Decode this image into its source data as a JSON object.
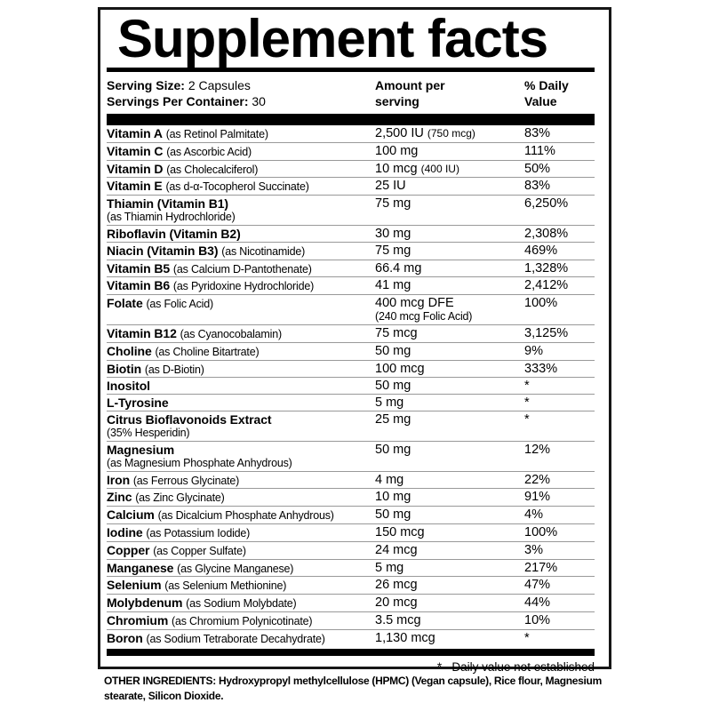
{
  "label": {
    "title": "Supplement facts",
    "serving": {
      "size_label": "Serving Size:",
      "size_value": "2 Capsules",
      "container_label": "Servings Per Container:",
      "container_value": "30"
    },
    "columns": {
      "amount_header": "Amount per\nserving",
      "dv_header": "%  Daily\nValue"
    },
    "rows": [
      {
        "name": "Vitamin A",
        "source": "(as Retinol Palmitate)",
        "amount": "2,500 IU",
        "amount_note": "(750 mcg)",
        "dv": "83%"
      },
      {
        "name": "Vitamin C",
        "source": "(as Ascorbic Acid)",
        "amount": "100 mg",
        "dv": "111%"
      },
      {
        "name": "Vitamin D",
        "source": "(as Cholecalciferol)",
        "amount": "10 mcg",
        "amount_note": "(400 IU)",
        "dv": "50%"
      },
      {
        "name": "Vitamin E",
        "source": "(as d-α-Tocopherol Succinate)",
        "amount": "25 IU",
        "dv": "83%"
      },
      {
        "name": "Thiamin (Vitamin B1)",
        "name_sub": "(as Thiamin Hydrochloride)",
        "amount": "75 mg",
        "dv": "6,250%"
      },
      {
        "name": "Riboflavin (Vitamin B2)",
        "amount": "30 mg",
        "dv": "2,308%"
      },
      {
        "name": "Niacin (Vitamin B3)",
        "source": "(as Nicotinamide)",
        "amount": "75 mg",
        "dv": "469%"
      },
      {
        "name": "Vitamin B5",
        "source": "(as Calcium D-Pantothenate)",
        "amount": "66.4 mg",
        "dv": "1,328%"
      },
      {
        "name": "Vitamin B6",
        "source": "(as Pyridoxine Hydrochloride)",
        "amount": "41 mg",
        "dv": "2,412%"
      },
      {
        "name": "Folate",
        "source": "(as Folic Acid)",
        "amount": "400 mcg DFE",
        "amount_sub": "(240 mcg Folic Acid)",
        "dv": "100%"
      },
      {
        "name": "Vitamin B12",
        "source": "(as Cyanocobalamin)",
        "amount": "75 mcg",
        "dv": "3,125%"
      },
      {
        "name": "Choline",
        "source": "(as Choline Bitartrate)",
        "amount": "50 mg",
        "dv": "9%"
      },
      {
        "name": "Biotin",
        "source": "(as D-Biotin)",
        "amount": "100 mcg",
        "dv": "333%"
      },
      {
        "name": "Inositol",
        "amount": "50 mg",
        "dv": "*"
      },
      {
        "name": "L-Tyrosine",
        "amount": "5 mg",
        "dv": "*"
      },
      {
        "name": "Citrus Bioflavonoids Extract",
        "name_sub": "(35% Hesperidin)",
        "amount": "25 mg",
        "dv": "*"
      },
      {
        "name": "Magnesium",
        "name_sub": "(as Magnesium Phosphate Anhydrous)",
        "amount": "50 mg",
        "dv": "12%"
      },
      {
        "name": "Iron",
        "source": "(as Ferrous Glycinate)",
        "amount": "4 mg",
        "dv": "22%"
      },
      {
        "name": "Zinc",
        "source": "(as Zinc Glycinate)",
        "amount": "10 mg",
        "dv": "91%"
      },
      {
        "name": "Calcium",
        "source": "(as Dicalcium Phosphate Anhydrous)",
        "amount": "50 mg",
        "dv": "4%"
      },
      {
        "name": "Iodine",
        "source": "(as Potassium Iodide)",
        "amount": "150 mcg",
        "dv": "100%"
      },
      {
        "name": "Copper",
        "source": "(as Copper Sulfate)",
        "amount": "24 mcg",
        "dv": "3%"
      },
      {
        "name": "Manganese",
        "source": "(as Glycine Manganese)",
        "amount": "5 mg",
        "dv": "217%"
      },
      {
        "name": "Selenium",
        "source": "(as Selenium Methionine)",
        "amount": "26 mcg",
        "dv": "47%"
      },
      {
        "name": "Molybdenum",
        "source": "(as Sodium Molybdate)",
        "amount": "20 mcg",
        "dv": "44%"
      },
      {
        "name": "Chromium",
        "source": "(as Chromium Polynicotinate)",
        "amount": "3.5 mcg",
        "dv": "10%"
      },
      {
        "name": "Boron",
        "source": "(as Sodium Tetraborate Decahydrate)",
        "amount": "1,130 mcg",
        "dv": "*"
      }
    ],
    "footnote": "*   Daily value not established",
    "other_ingredients_label": "OTHER INGREDIENTS:",
    "other_ingredients_text": "Hydroxypropyl methylcellulose (HPMC) (Vegan capsule), Rice flour, Magnesium stearate, Silicon Dioxide."
  },
  "colors": {
    "text": "#000000",
    "rule": "#000000",
    "separator": "#999999",
    "border": "#161616",
    "background": "#ffffff"
  }
}
